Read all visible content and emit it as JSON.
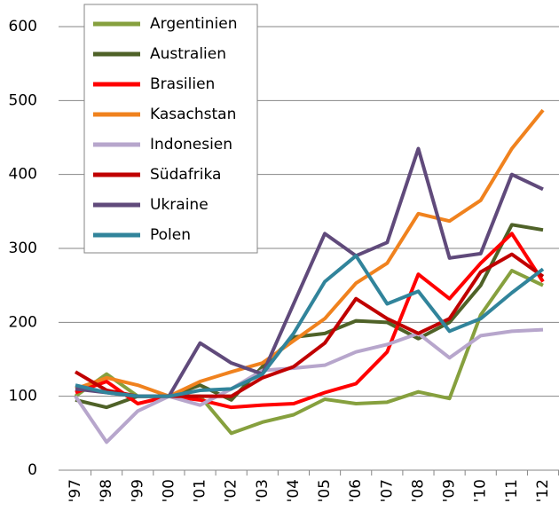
{
  "chart_data": {
    "type": "line",
    "categories": [
      "'97",
      "'98",
      "'99",
      "'00",
      "'01",
      "'02",
      "'03",
      "'04",
      "'05",
      "'06",
      "'07",
      "'08",
      "'09",
      "'10",
      "'11",
      "'12"
    ],
    "series": [
      {
        "name": "Argentinien",
        "color": "#86a03e",
        "values": [
          100,
          130,
          100,
          100,
          100,
          50,
          65,
          75,
          96,
          90,
          92,
          106,
          97,
          210,
          270,
          250
        ]
      },
      {
        "name": "Australien",
        "color": "#4f6228",
        "values": [
          95,
          85,
          100,
          100,
          115,
          95,
          140,
          180,
          185,
          202,
          200,
          178,
          200,
          250,
          332,
          325
        ]
      },
      {
        "name": "Brasilien",
        "color": "#ff0000",
        "values": [
          105,
          120,
          90,
          100,
          95,
          85,
          88,
          90,
          105,
          117,
          160,
          265,
          232,
          280,
          320,
          255
        ]
      },
      {
        "name": "Kasachstan",
        "color": "#f0821e",
        "values": [
          110,
          125,
          115,
          100,
          120,
          133,
          145,
          175,
          205,
          253,
          280,
          347,
          337,
          365,
          435,
          487
        ]
      },
      {
        "name": "Indonesien",
        "color": "#b7a6cc",
        "values": [
          100,
          38,
          80,
          100,
          88,
          110,
          135,
          138,
          142,
          160,
          170,
          185,
          152,
          182,
          188,
          190
        ]
      },
      {
        "name": "Südafrika",
        "color": "#c00000",
        "values": [
          133,
          108,
          100,
          100,
          100,
          100,
          125,
          140,
          172,
          232,
          205,
          185,
          205,
          268,
          292,
          262
        ]
      },
      {
        "name": "Ukraine",
        "color": "#604a7b",
        "values": [
          110,
          105,
          100,
          100,
          172,
          145,
          130,
          225,
          320,
          290,
          308,
          435,
          287,
          293,
          400,
          380
        ]
      },
      {
        "name": "Polen",
        "color": "#31849b",
        "values": [
          115,
          105,
          100,
          100,
          108,
          110,
          130,
          185,
          255,
          290,
          225,
          242,
          188,
          205,
          240,
          272
        ]
      }
    ],
    "ylim": [
      0,
      600
    ],
    "yticks": [
      0,
      100,
      200,
      300,
      400,
      500,
      600
    ],
    "grid": true
  }
}
